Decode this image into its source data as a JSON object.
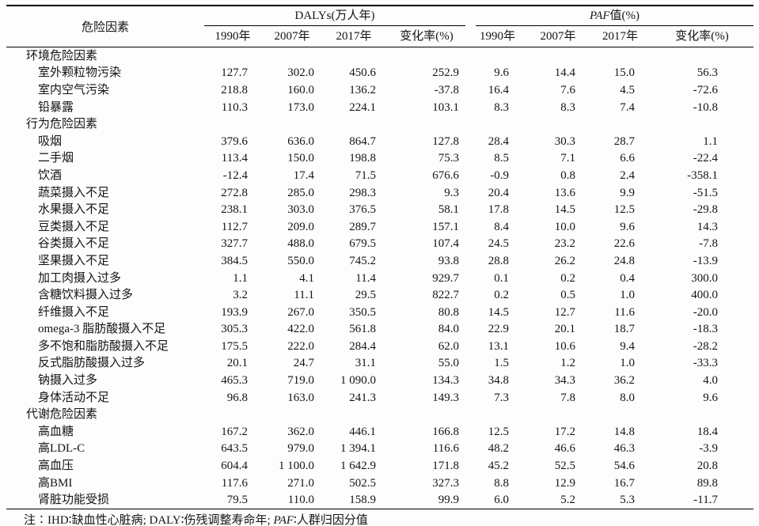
{
  "table": {
    "factor_header": "危险因素",
    "group1_header": "DALYs(万人年)",
    "group2_italic": "PAF",
    "group2_rest": "值(%)",
    "col_headers": [
      "1990年",
      "2007年",
      "2017年",
      "变化率(%)",
      "1990年",
      "2007年",
      "2017年",
      "变化率(%)"
    ],
    "rows": [
      {
        "type": "section",
        "label": "环境危险因素"
      },
      {
        "type": "data",
        "label": "室外颗粒物污染",
        "values": [
          "127.7",
          "302.0",
          "450.6",
          "252.9",
          "9.6",
          "14.4",
          "15.0",
          "56.3"
        ]
      },
      {
        "type": "data",
        "label": "室内空气污染",
        "values": [
          "218.8",
          "160.0",
          "136.2",
          "-37.8",
          "16.4",
          "7.6",
          "4.5",
          "-72.6"
        ]
      },
      {
        "type": "data",
        "label": "铅暴露",
        "values": [
          "110.3",
          "173.0",
          "224.1",
          "103.1",
          "8.3",
          "8.3",
          "7.4",
          "-10.8"
        ]
      },
      {
        "type": "section",
        "label": "行为危险因素"
      },
      {
        "type": "data",
        "label": "吸烟",
        "values": [
          "379.6",
          "636.0",
          "864.7",
          "127.8",
          "28.4",
          "30.3",
          "28.7",
          "1.1"
        ]
      },
      {
        "type": "data",
        "label": "二手烟",
        "values": [
          "113.4",
          "150.0",
          "198.8",
          "75.3",
          "8.5",
          "7.1",
          "6.6",
          "-22.4"
        ]
      },
      {
        "type": "data",
        "label": "饮酒",
        "values": [
          "-12.4",
          "17.4",
          "71.5",
          "676.6",
          "-0.9",
          "0.8",
          "2.4",
          "-358.1"
        ]
      },
      {
        "type": "data",
        "label": "蔬菜摄入不足",
        "values": [
          "272.8",
          "285.0",
          "298.3",
          "9.3",
          "20.4",
          "13.6",
          "9.9",
          "-51.5"
        ]
      },
      {
        "type": "data",
        "label": "水果摄入不足",
        "values": [
          "238.1",
          "303.0",
          "376.5",
          "58.1",
          "17.8",
          "14.5",
          "12.5",
          "-29.8"
        ]
      },
      {
        "type": "data",
        "label": "豆类摄入不足",
        "values": [
          "112.7",
          "209.0",
          "289.7",
          "157.1",
          "8.4",
          "10.0",
          "9.6",
          "14.3"
        ]
      },
      {
        "type": "data",
        "label": "谷类摄入不足",
        "values": [
          "327.7",
          "488.0",
          "679.5",
          "107.4",
          "24.5",
          "23.2",
          "22.6",
          "-7.8"
        ]
      },
      {
        "type": "data",
        "label": "坚果摄入不足",
        "values": [
          "384.5",
          "550.0",
          "745.2",
          "93.8",
          "28.8",
          "26.2",
          "24.8",
          "-13.9"
        ]
      },
      {
        "type": "data",
        "label": "加工肉摄入过多",
        "values": [
          "1.1",
          "4.1",
          "11.4",
          "929.7",
          "0.1",
          "0.2",
          "0.4",
          "300.0"
        ]
      },
      {
        "type": "data",
        "label": "含糖饮料摄入过多",
        "values": [
          "3.2",
          "11.1",
          "29.5",
          "822.7",
          "0.2",
          "0.5",
          "1.0",
          "400.0"
        ]
      },
      {
        "type": "data",
        "label": "纤维摄入不足",
        "values": [
          "193.9",
          "267.0",
          "350.5",
          "80.8",
          "14.5",
          "12.7",
          "11.6",
          "-20.0"
        ]
      },
      {
        "type": "data",
        "label": "omega-3 脂肪酸摄入不足",
        "values": [
          "305.3",
          "422.0",
          "561.8",
          "84.0",
          "22.9",
          "20.1",
          "18.7",
          "-18.3"
        ]
      },
      {
        "type": "data",
        "label": "多不饱和脂肪酸摄入不足",
        "values": [
          "175.5",
          "222.0",
          "284.4",
          "62.0",
          "13.1",
          "10.6",
          "9.4",
          "-28.2"
        ]
      },
      {
        "type": "data",
        "label": "反式脂肪酸摄入过多",
        "values": [
          "20.1",
          "24.7",
          "31.1",
          "55.0",
          "1.5",
          "1.2",
          "1.0",
          "-33.3"
        ]
      },
      {
        "type": "data",
        "label": "钠摄入过多",
        "values": [
          "465.3",
          "719.0",
          "1 090.0",
          "134.3",
          "34.8",
          "34.3",
          "36.2",
          "4.0"
        ]
      },
      {
        "type": "data",
        "label": "身体活动不足",
        "values": [
          "96.8",
          "163.0",
          "241.3",
          "149.3",
          "7.3",
          "7.8",
          "8.0",
          "9.6"
        ]
      },
      {
        "type": "section",
        "label": "代谢危险因素"
      },
      {
        "type": "data",
        "label": "高血糖",
        "values": [
          "167.2",
          "362.0",
          "446.1",
          "166.8",
          "12.5",
          "17.2",
          "14.8",
          "18.4"
        ]
      },
      {
        "type": "data",
        "label": "高LDL-C",
        "values": [
          "643.5",
          "979.0",
          "1 394.1",
          "116.6",
          "48.2",
          "46.6",
          "46.3",
          "-3.9"
        ]
      },
      {
        "type": "data",
        "label": "高血压",
        "values": [
          "604.4",
          "1 100.0",
          "1 642.9",
          "171.8",
          "45.2",
          "52.5",
          "54.6",
          "20.8"
        ]
      },
      {
        "type": "data",
        "label": "高BMI",
        "values": [
          "117.6",
          "271.0",
          "502.5",
          "327.3",
          "8.8",
          "12.9",
          "16.7",
          "89.8"
        ]
      },
      {
        "type": "data",
        "label": "肾脏功能受损",
        "values": [
          "79.5",
          "110.0",
          "158.9",
          "99.9",
          "6.0",
          "5.2",
          "5.3",
          "-11.7"
        ]
      }
    ]
  },
  "note": {
    "prefix": "注∶IHD∶缺血性心脏病; DALY∶伤残调整寿命年; ",
    "italic": "PAF",
    "suffix": "∶人群归因分值"
  }
}
